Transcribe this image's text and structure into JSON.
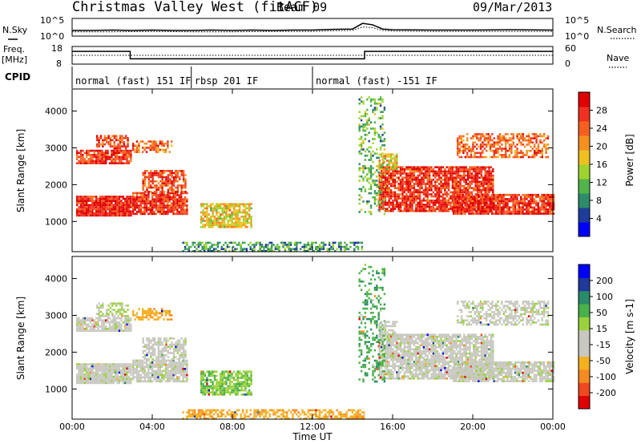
{
  "header": {
    "station": "Christmas Valley West (fitACF)",
    "beam": "Beam 09",
    "date": "09/Mar/2013"
  },
  "colors": {
    "power": [
      "#0000ff",
      "#1e3c9a",
      "#2f8c6a",
      "#52b44a",
      "#9ed42c",
      "#f0c020",
      "#f59020",
      "#f56020",
      "#f03020",
      "#e00000"
    ],
    "velocity": [
      "#e00000",
      "#f04820",
      "#f58a20",
      "#f5b020",
      "#c8c8c0",
      "#c8c8c0",
      "#9ad23c",
      "#4ab14a",
      "#2a8a6a",
      "#1f3a9a",
      "#0000ff"
    ],
    "ground_scatter": "#c8c8c0"
  },
  "chart_data": [
    {
      "type": "line",
      "panel": "noise",
      "left_label": "N.Sky",
      "right_label": "N.Search",
      "left_ticks": [
        "10^5",
        "10^0"
      ],
      "right_ticks": [
        "10^5",
        "10^0"
      ],
      "x_range_hours": [
        0,
        24
      ],
      "series": [
        {
          "name": "N.Sky",
          "style": "solid",
          "x": [
            0,
            1,
            2,
            3,
            4,
            5,
            6,
            7,
            8,
            9,
            10,
            11,
            12,
            13,
            14,
            14.5,
            15,
            15.5,
            16,
            18,
            20,
            22,
            24
          ],
          "y": [
            1.6,
            1.6,
            1.7,
            1.6,
            1.7,
            1.6,
            1.6,
            1.7,
            1.6,
            1.7,
            1.6,
            1.7,
            1.7,
            1.9,
            2.0,
            3.6,
            3.2,
            2.0,
            1.8,
            1.7,
            1.7,
            1.8,
            1.7
          ]
        },
        {
          "name": "N.Search",
          "style": "dotted",
          "x": [
            0,
            2,
            4,
            6,
            8,
            10,
            12,
            13,
            14,
            14.5,
            15,
            15.5,
            16,
            18,
            20,
            22,
            24
          ],
          "y": [
            1.2,
            1.2,
            1.3,
            1.2,
            1.2,
            1.3,
            1.3,
            1.5,
            1.6,
            2.6,
            2.4,
            1.6,
            1.4,
            1.3,
            1.3,
            1.3,
            1.3
          ]
        }
      ]
    },
    {
      "type": "line",
      "panel": "frequency",
      "left_label": "Freq.",
      "left_unit": "[MHz]",
      "right_label": "Nave",
      "left_ticks": [
        "18",
        "8"
      ],
      "right_ticks": [
        "60",
        "0"
      ],
      "ylim_left": [
        8,
        18
      ],
      "ylim_right": [
        0,
        60
      ],
      "series": [
        {
          "name": "Freq.",
          "style": "solid",
          "x": [
            0,
            2.9,
            2.9,
            14.6,
            14.6,
            24
          ],
          "y": [
            15.2,
            15.2,
            11.0,
            11.0,
            15.2,
            15.2
          ]
        },
        {
          "name": "Nave",
          "style": "dotted",
          "x": [
            0,
            24
          ],
          "y": [
            30,
            30
          ]
        }
      ]
    },
    {
      "type": "table",
      "panel": "cpid",
      "label": "CPID",
      "segments": [
        {
          "start_h": 0.0,
          "end_h": 5.95,
          "name": "normal (fast) 151 IF"
        },
        {
          "start_h": 5.95,
          "end_h": 12.0,
          "name": "rbsp 201 IF"
        },
        {
          "start_h": 12.0,
          "end_h": 24.0,
          "name": "normal (fast) -151 IF"
        }
      ]
    },
    {
      "type": "heatmap",
      "panel": "power",
      "ylabel": "Slant Range [km]",
      "yticks": [
        1000,
        2000,
        3000,
        4000
      ],
      "ylim": [
        180,
        4600
      ],
      "xlim": [
        0,
        24
      ],
      "colorbar_label": "Power [dB]",
      "colorbar_ticks": [
        "4",
        "8",
        "12",
        "16",
        "20",
        "24",
        "28"
      ],
      "colorbar_range": [
        0,
        32
      ],
      "regions": [
        {
          "t0": 0.2,
          "t1": 2.9,
          "r0": 1150,
          "r1": 1700,
          "level": 0.9,
          "density": 0.95
        },
        {
          "t0": 0.2,
          "t1": 2.9,
          "r0": 2600,
          "r1": 2950,
          "level": 0.85,
          "density": 0.85
        },
        {
          "t0": 1.2,
          "t1": 2.8,
          "r0": 3000,
          "r1": 3350,
          "level": 0.8,
          "density": 0.55
        },
        {
          "t0": 3.0,
          "t1": 5.7,
          "r0": 1200,
          "r1": 1800,
          "level": 0.85,
          "density": 0.85
        },
        {
          "t0": 3.5,
          "t1": 5.7,
          "r0": 1800,
          "r1": 2400,
          "level": 0.8,
          "density": 0.7
        },
        {
          "t0": 3.0,
          "t1": 5.0,
          "r0": 2900,
          "r1": 3200,
          "level": 0.75,
          "density": 0.55
        },
        {
          "t0": 6.4,
          "t1": 8.9,
          "r0": 850,
          "r1": 1500,
          "level": 0.55,
          "density": 0.8
        },
        {
          "t0": 5.5,
          "t1": 14.6,
          "r0": 200,
          "r1": 450,
          "level": 0.3,
          "density": 0.6
        },
        {
          "t0": 15.3,
          "t1": 21.0,
          "r0": 1300,
          "r1": 2500,
          "level": 0.85,
          "density": 0.85
        },
        {
          "t0": 19.0,
          "t1": 24.0,
          "r0": 1200,
          "r1": 1750,
          "level": 0.85,
          "density": 0.85
        },
        {
          "t0": 19.2,
          "t1": 23.8,
          "r0": 2750,
          "r1": 3400,
          "level": 0.75,
          "density": 0.6
        },
        {
          "t0": 14.3,
          "t1": 15.6,
          "r0": 1200,
          "r1": 4400,
          "level": 0.35,
          "density": 0.3
        },
        {
          "t0": 15.3,
          "t1": 16.2,
          "r0": 2400,
          "r1": 2850,
          "level": 0.55,
          "density": 0.7
        }
      ]
    },
    {
      "type": "heatmap",
      "panel": "velocity",
      "ylabel": "Slant Range [km]",
      "yticks": [
        1000,
        2000,
        3000,
        4000
      ],
      "ylim": [
        180,
        4600
      ],
      "xlim": [
        0,
        24
      ],
      "xlabel": "Time UT",
      "xticks": [
        "00:00",
        "04:00",
        "08:00",
        "12:00",
        "16:00",
        "20:00",
        "00:00"
      ],
      "colorbar_label": "Velocity [m s-1]",
      "colorbar_ticks": [
        "200",
        "100",
        "50",
        "15",
        "-15",
        "-50",
        "-100",
        "-200"
      ],
      "colorbar_range": [
        -250,
        250
      ],
      "regions": [
        {
          "t0": 0.2,
          "t1": 2.9,
          "r0": 1150,
          "r1": 1700,
          "level": 0.5,
          "density": 0.95
        },
        {
          "t0": 0.2,
          "t1": 2.9,
          "r0": 2600,
          "r1": 2950,
          "level": 0.5,
          "density": 0.85
        },
        {
          "t0": 1.2,
          "t1": 2.8,
          "r0": 3000,
          "r1": 3350,
          "level": 0.55,
          "density": 0.55
        },
        {
          "t0": 3.0,
          "t1": 5.7,
          "r0": 1200,
          "r1": 1800,
          "level": 0.5,
          "density": 0.85
        },
        {
          "t0": 3.5,
          "t1": 5.7,
          "r0": 1800,
          "r1": 2400,
          "level": 0.5,
          "density": 0.7
        },
        {
          "t0": 3.0,
          "t1": 5.0,
          "r0": 2900,
          "r1": 3200,
          "level": 0.3,
          "density": 0.55
        },
        {
          "t0": 6.4,
          "t1": 8.9,
          "r0": 850,
          "r1": 1500,
          "level": 0.62,
          "density": 0.8
        },
        {
          "t0": 5.5,
          "t1": 14.6,
          "r0": 200,
          "r1": 450,
          "level": 0.3,
          "density": 0.6
        },
        {
          "t0": 15.3,
          "t1": 21.0,
          "r0": 1300,
          "r1": 2500,
          "level": 0.5,
          "density": 0.85
        },
        {
          "t0": 19.0,
          "t1": 24.0,
          "r0": 1200,
          "r1": 1750,
          "level": 0.5,
          "density": 0.85
        },
        {
          "t0": 19.2,
          "t1": 23.8,
          "r0": 2750,
          "r1": 3400,
          "level": 0.5,
          "density": 0.6
        },
        {
          "t0": 14.3,
          "t1": 15.6,
          "r0": 1200,
          "r1": 4400,
          "level": 0.7,
          "density": 0.3
        },
        {
          "t0": 15.3,
          "t1": 16.2,
          "r0": 2400,
          "r1": 2850,
          "level": 0.5,
          "density": 0.7
        }
      ]
    }
  ]
}
